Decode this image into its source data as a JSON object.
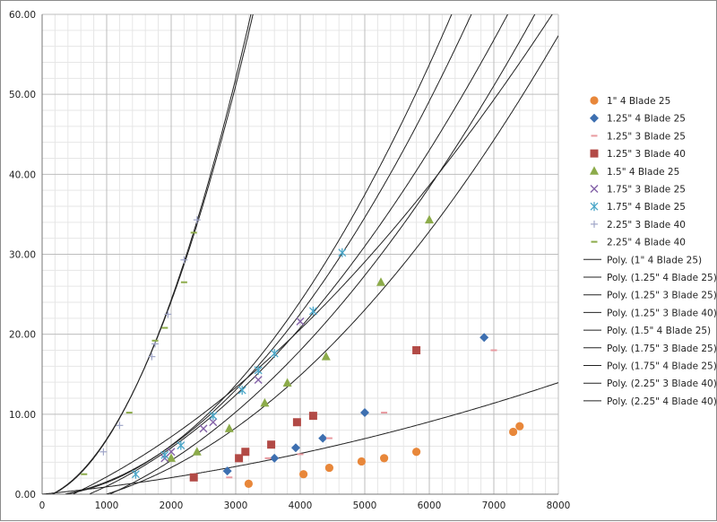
{
  "chart_data": {
    "type": "scatter",
    "title": "",
    "xlabel": "",
    "ylabel": "",
    "xlim": [
      0,
      8000
    ],
    "ylim": [
      0,
      60
    ],
    "x_ticks": [
      "0",
      "1000",
      "2000",
      "3000",
      "4000",
      "5000",
      "6000",
      "7000",
      "8000"
    ],
    "y_ticks": [
      "0.00",
      "10.00",
      "20.00",
      "30.00",
      "40.00",
      "50.00",
      "60.00"
    ],
    "grid": "major + minor gridlines",
    "legend_position": "right",
    "series": [
      {
        "name": "1\" 4 Blade 25",
        "marker": "circle",
        "color": "#e8873a",
        "points": [
          [
            3200,
            1.3
          ],
          [
            4050,
            2.5
          ],
          [
            4450,
            3.3
          ],
          [
            4950,
            4.1
          ],
          [
            5300,
            4.5
          ],
          [
            5800,
            5.3
          ],
          [
            7300,
            7.8
          ],
          [
            7400,
            8.5
          ]
        ]
      },
      {
        "name": "1.25\" 4 Blade 25",
        "marker": "diamond",
        "color": "#3d6fb0",
        "points": [
          [
            2870,
            2.9
          ],
          [
            3600,
            4.5
          ],
          [
            3930,
            5.8
          ],
          [
            4350,
            7.0
          ],
          [
            5000,
            10.2
          ],
          [
            6850,
            19.6
          ]
        ]
      },
      {
        "name": "1.25\" 3 Blade 25",
        "marker": "dash",
        "color": "#e89aa0",
        "points": [
          [
            2900,
            2.1
          ],
          [
            3500,
            4.5
          ],
          [
            4000,
            5.0
          ],
          [
            4450,
            7.0
          ],
          [
            5300,
            10.2
          ],
          [
            7000,
            18.0
          ]
        ]
      },
      {
        "name": "1.25\" 3 Blade 40",
        "marker": "square",
        "color": "#b24a46",
        "points": [
          [
            2350,
            2.1
          ],
          [
            3050,
            4.5
          ],
          [
            3150,
            5.3
          ],
          [
            3550,
            6.2
          ],
          [
            3950,
            9.0
          ],
          [
            4200,
            9.8
          ],
          [
            5800,
            18.0
          ]
        ]
      },
      {
        "name": "1.5\" 4 Blade 25",
        "marker": "triangle",
        "color": "#8cab4a",
        "points": [
          [
            2000,
            4.5
          ],
          [
            2400,
            5.3
          ],
          [
            2900,
            8.2
          ],
          [
            3450,
            11.4
          ],
          [
            3800,
            13.9
          ],
          [
            4400,
            17.2
          ],
          [
            5250,
            26.5
          ],
          [
            6000,
            34.3
          ]
        ]
      },
      {
        "name": "1.75\" 3 Blade 25",
        "marker": "x",
        "color": "#8462a8",
        "points": [
          [
            1900,
            4.5
          ],
          [
            2000,
            5.3
          ],
          [
            2500,
            8.2
          ],
          [
            2650,
            9.0
          ],
          [
            3350,
            14.3
          ],
          [
            4000,
            21.6
          ]
        ]
      },
      {
        "name": "1.75\" 4 Blade 25",
        "marker": "star",
        "color": "#4aa6c8",
        "points": [
          [
            1450,
            2.5
          ],
          [
            1900,
            4.9
          ],
          [
            2150,
            6.1
          ],
          [
            2650,
            9.8
          ],
          [
            3100,
            13.0
          ],
          [
            3350,
            15.5
          ],
          [
            3600,
            17.6
          ],
          [
            4200,
            22.9
          ],
          [
            4650,
            30.2
          ]
        ]
      },
      {
        "name": "2.25\" 3 Blade 40",
        "marker": "plus",
        "color": "#a0a6c8",
        "points": [
          [
            950,
            5.3
          ],
          [
            1200,
            8.6
          ],
          [
            1700,
            17.2
          ],
          [
            1750,
            18.8
          ],
          [
            1950,
            22.5
          ],
          [
            2200,
            29.3
          ],
          [
            2400,
            34.3
          ]
        ]
      },
      {
        "name": "2.25\" 4 Blade 40",
        "marker": "dash",
        "color": "#8cab4a",
        "points": [
          [
            650,
            2.5
          ],
          [
            1350,
            10.2
          ],
          [
            1750,
            19.2
          ],
          [
            1900,
            20.8
          ],
          [
            2200,
            26.5
          ],
          [
            2350,
            32.7
          ]
        ]
      }
    ],
    "trendlines": [
      {
        "name": "Poly. (1\" 4 Blade 25)",
        "coef": [
          0,
          0.0008,
          1.18e-07
        ],
        "color": "#222222"
      },
      {
        "name": "Poly. (1.25\" 4 Blade 25)",
        "coef": [
          -2.9,
          0.0019,
          8.3e-07
        ],
        "color": "#222222"
      },
      {
        "name": "Poly. (1.25\" 3 Blade 25)",
        "coef": [
          -1.7,
          0.0009,
          8.1e-07
        ],
        "color": "#222222"
      },
      {
        "name": "Poly. (1.25\" 3 Blade 40)",
        "coef": [
          -2.0,
          0.0021,
          9e-07
        ],
        "color": "#222222"
      },
      {
        "name": "Poly. (1.5\" 4 Blade 25)",
        "coef": [
          -1.7,
          0.0033,
          5.7e-07
        ],
        "color": "#222222"
      },
      {
        "name": "Poly. (1.75\" 3 Blade 25)",
        "coef": [
          -0.3,
          0.0003,
          1.45e-06
        ],
        "color": "#222222"
      },
      {
        "name": "Poly. (1.75\" 4 Blade 25)",
        "coef": [
          -0.4,
          0.0007,
          1.26e-06
        ],
        "color": "#222222"
      },
      {
        "name": "Poly. (2.25\" 3 Blade 40)",
        "coef": [
          -0.5,
          0.0025,
          4.9e-06
        ],
        "color": "#222222"
      },
      {
        "name": "Poly. (2.25\" 4 Blade 40)",
        "coef": [
          -0.5,
          0.0022,
          5.1e-06
        ],
        "color": "#222222"
      }
    ]
  }
}
